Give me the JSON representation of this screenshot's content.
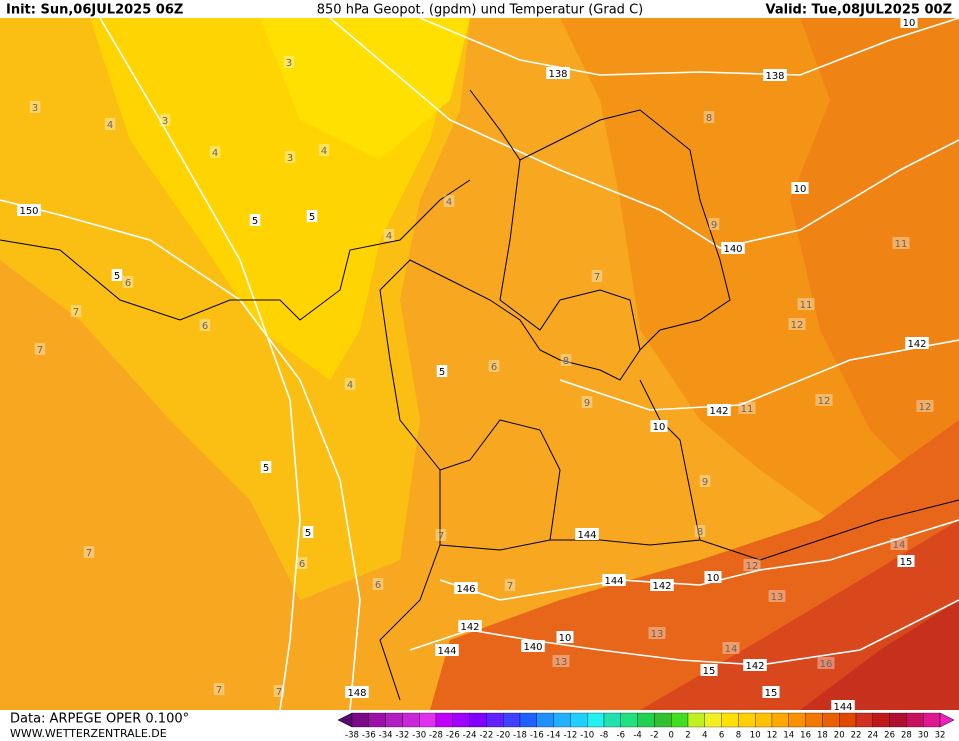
{
  "header": {
    "init": "Init: Sun,06JUL2025 06Z",
    "title": "850 hPa Geopot. (gpdm) und Temperatur (Grad C)",
    "valid": "Valid: Tue,08JUL2025 00Z"
  },
  "footer": {
    "data": "Data: ARPEGE OPER 0.100°",
    "site": "WWW.WETTERZENTRALE.DE"
  },
  "colorbar": {
    "labels": [
      -38,
      -36,
      -34,
      -32,
      -30,
      -28,
      -26,
      -24,
      -22,
      -20,
      -18,
      -16,
      -14,
      -12,
      -10,
      -8,
      -6,
      -4,
      -2,
      0,
      2,
      4,
      6,
      8,
      10,
      12,
      14,
      16,
      18,
      20,
      22,
      24,
      26,
      28,
      30,
      32
    ],
    "colors": [
      "#5a0a6e",
      "#7a0a8a",
      "#9a10a8",
      "#b020c0",
      "#c828d8",
      "#e030f0",
      "#c000ff",
      "#a000ff",
      "#8000ff",
      "#6020ff",
      "#4040ff",
      "#2060ff",
      "#2090ff",
      "#20b0ff",
      "#20d0ff",
      "#20f0f0",
      "#20e0b0",
      "#20e080",
      "#20d050",
      "#30c030",
      "#40e020",
      "#c0f020",
      "#f0f020",
      "#ffe000",
      "#ffd000",
      "#ffc000",
      "#ffa800",
      "#f89000",
      "#f07800",
      "#e86000",
      "#e04800",
      "#d03020",
      "#c01818",
      "#b01030",
      "#c81060",
      "#e01890",
      "#f020c0"
    ]
  },
  "map": {
    "geopotential_labels": [
      "138",
      "138",
      "150",
      "140",
      "142",
      "142",
      "144",
      "146",
      "144",
      "142",
      "142",
      "144",
      "140",
      "142",
      "148",
      "144"
    ],
    "contour_labels": [
      "10",
      "10",
      "10",
      "10",
      "10",
      "15",
      "15",
      "15",
      "5",
      "5",
      "5",
      "5",
      "5",
      "5"
    ],
    "temperature_labels": [
      "3",
      "3",
      "3",
      "3",
      "4",
      "4",
      "4",
      "4",
      "4",
      "4",
      "6",
      "6",
      "6",
      "6",
      "6",
      "7",
      "7",
      "7",
      "7",
      "7",
      "7",
      "7",
      "7",
      "8",
      "8",
      "8",
      "9",
      "9",
      "9",
      "11",
      "11",
      "11",
      "12",
      "12",
      "12",
      "12",
      "13",
      "13",
      "13",
      "14",
      "14",
      "16"
    ]
  }
}
